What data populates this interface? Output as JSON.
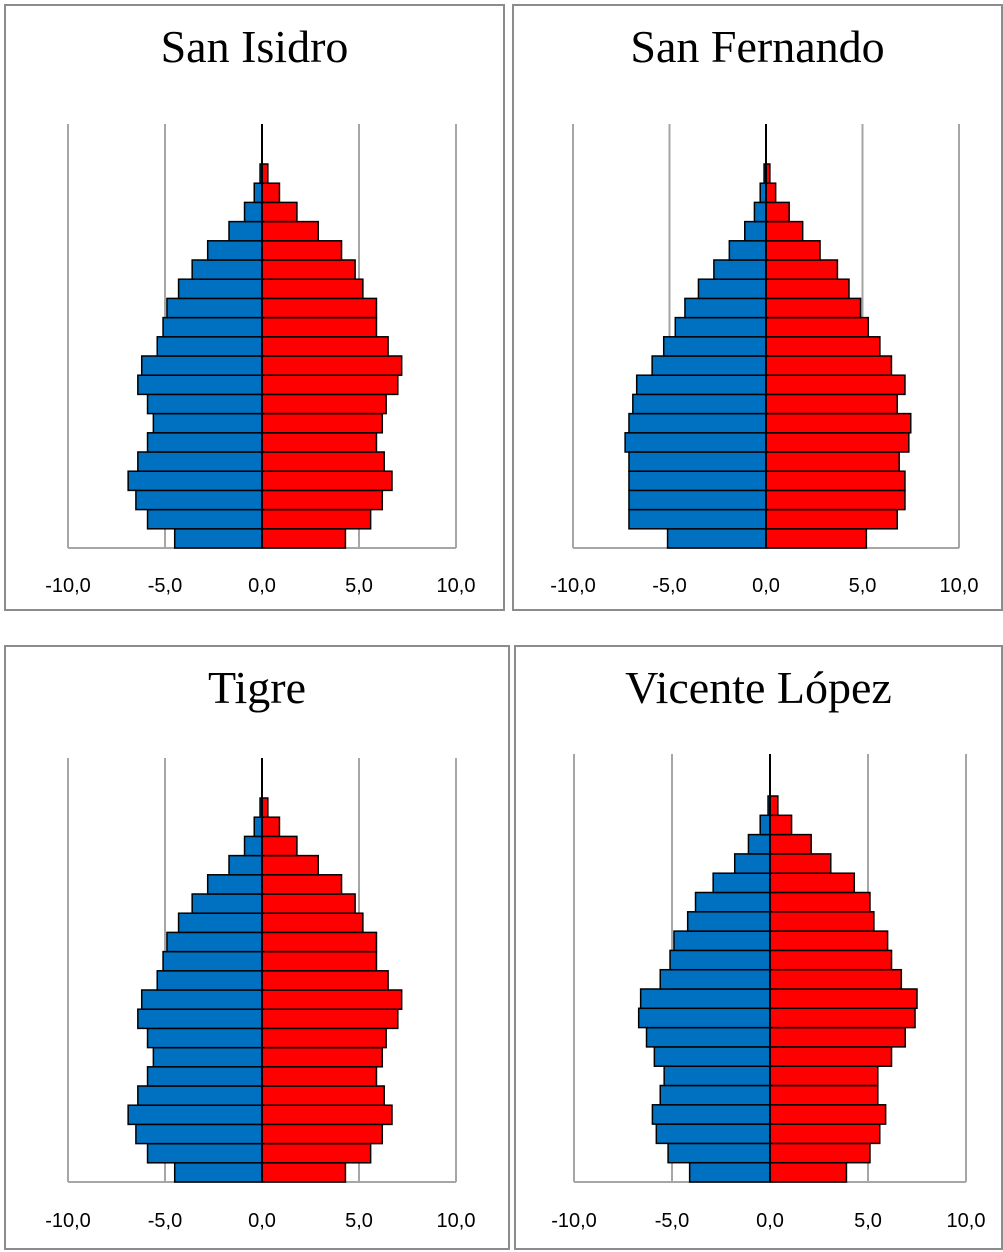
{
  "colors": {
    "male": "#0070c0",
    "female": "#ff0000",
    "grid": "#a6a6a6",
    "outline": "#000000"
  },
  "chart_data": [
    {
      "type": "bar",
      "orientation": "horizontal",
      "title": "San Isidro",
      "xlim": [
        -10,
        10
      ],
      "x_ticks": [
        "-10,0",
        "-5,0",
        "0,0",
        "5,0",
        "10,0"
      ],
      "grid": true,
      "series": [
        {
          "values": [
            -4.5,
            -5.9,
            -6.5,
            -6.9,
            -6.4,
            -5.9,
            -5.6,
            -5.9,
            -6.4,
            -6.2,
            -5.4,
            -5.1,
            -4.9,
            -4.3,
            -3.6,
            -2.8,
            -1.7,
            -0.9,
            -0.4,
            -0.1
          ]
        },
        {
          "values": [
            4.3,
            5.6,
            6.2,
            6.7,
            6.3,
            5.9,
            6.2,
            6.4,
            7.0,
            7.2,
            6.5,
            5.9,
            5.9,
            5.2,
            4.8,
            4.1,
            2.9,
            1.8,
            0.9,
            0.3
          ]
        }
      ]
    },
    {
      "type": "bar",
      "orientation": "horizontal",
      "title": "San Fernando",
      "xlim": [
        -10,
        10
      ],
      "x_ticks": [
        "-10,0",
        "-5,0",
        "0,0",
        "5,0",
        "10,0"
      ],
      "grid": true,
      "series": [
        {
          "values": [
            -5.1,
            -7.1,
            -7.1,
            -7.1,
            -7.1,
            -7.3,
            -7.1,
            -6.9,
            -6.7,
            -5.9,
            -5.3,
            -4.7,
            -4.2,
            -3.5,
            -2.7,
            -1.9,
            -1.1,
            -0.6,
            -0.3,
            -0.1
          ]
        },
        {
          "values": [
            5.2,
            6.8,
            7.2,
            7.2,
            6.9,
            7.4,
            7.5,
            6.8,
            7.2,
            6.5,
            5.9,
            5.3,
            4.9,
            4.3,
            3.7,
            2.8,
            1.9,
            1.2,
            0.5,
            0.2
          ]
        }
      ]
    },
    {
      "type": "bar",
      "orientation": "horizontal",
      "title": "Tigre",
      "xlim": [
        -10,
        10
      ],
      "x_ticks": [
        "-10,0",
        "-5,0",
        "0,0",
        "5,0",
        "10,0"
      ],
      "grid": true,
      "series": [
        {
          "values": [
            -4.5,
            -5.9,
            -6.5,
            -6.9,
            -6.4,
            -5.9,
            -5.6,
            -5.9,
            -6.4,
            -6.2,
            -5.4,
            -5.1,
            -4.9,
            -4.3,
            -3.6,
            -2.8,
            -1.7,
            -0.9,
            -0.4,
            -0.1
          ]
        },
        {
          "values": [
            4.3,
            5.6,
            6.2,
            6.7,
            6.3,
            5.9,
            6.2,
            6.4,
            7.0,
            7.2,
            6.5,
            5.9,
            5.9,
            5.2,
            4.8,
            4.1,
            2.9,
            1.8,
            0.9,
            0.3
          ]
        }
      ]
    },
    {
      "type": "bar",
      "orientation": "horizontal",
      "title": "Vicente López",
      "xlim": [
        -10,
        10
      ],
      "x_ticks": [
        "-10,0",
        "-5,0",
        "0,0",
        "5,0",
        "10,0"
      ],
      "grid": true,
      "series": [
        {
          "values": [
            -4.1,
            -5.2,
            -5.8,
            -6.0,
            -5.6,
            -5.4,
            -5.9,
            -6.3,
            -6.7,
            -6.6,
            -5.6,
            -5.1,
            -4.9,
            -4.2,
            -3.8,
            -2.9,
            -1.8,
            -1.1,
            -0.5,
            -0.1
          ]
        },
        {
          "values": [
            3.9,
            5.1,
            5.6,
            5.9,
            5.5,
            5.5,
            6.2,
            6.9,
            7.4,
            7.5,
            6.7,
            6.2,
            6.0,
            5.3,
            5.1,
            4.3,
            3.1,
            2.1,
            1.1,
            0.4
          ]
        }
      ]
    }
  ]
}
